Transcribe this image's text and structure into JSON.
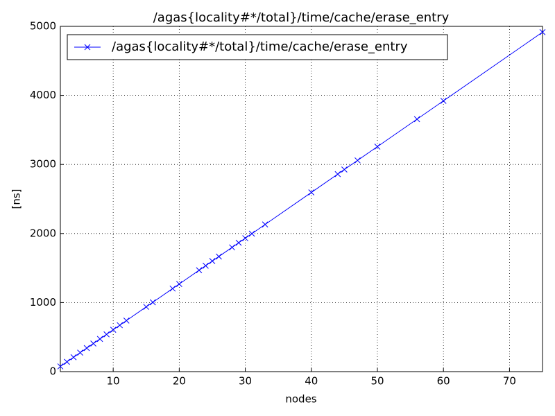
{
  "chart_data": {
    "type": "line",
    "title": "/agas{locality#*/total}/time/cache/erase_entry",
    "xlabel": "nodes",
    "ylabel": "[ns]",
    "x": [
      2,
      3,
      4,
      5,
      6,
      7,
      8,
      9,
      10,
      11,
      12,
      15,
      16,
      19,
      20,
      23,
      24,
      25,
      26,
      28,
      29,
      30,
      31,
      33,
      40,
      44,
      45,
      47,
      50,
      56,
      60,
      75
    ],
    "series": [
      {
        "name": "/agas{locality#*/total}/time/cache/erase_entry",
        "color": "#0000ff",
        "values": [
          76,
          142,
          208,
          275,
          341,
          407,
          473,
          540,
          606,
          672,
          739,
          938,
          1004,
          1203,
          1269,
          1468,
          1534,
          1601,
          1667,
          1799,
          1866,
          1932,
          1998,
          2131,
          2595,
          2860,
          2927,
          3059,
          3258,
          3656,
          3921,
          4916
        ]
      }
    ],
    "xlim": [
      2,
      75
    ],
    "xticks": [
      10,
      20,
      30,
      40,
      50,
      60,
      70
    ],
    "ylim": [
      0,
      5000
    ],
    "yticks": [
      0,
      1000,
      2000,
      3000,
      4000,
      5000
    ],
    "grid": true,
    "legend": "upper left"
  }
}
